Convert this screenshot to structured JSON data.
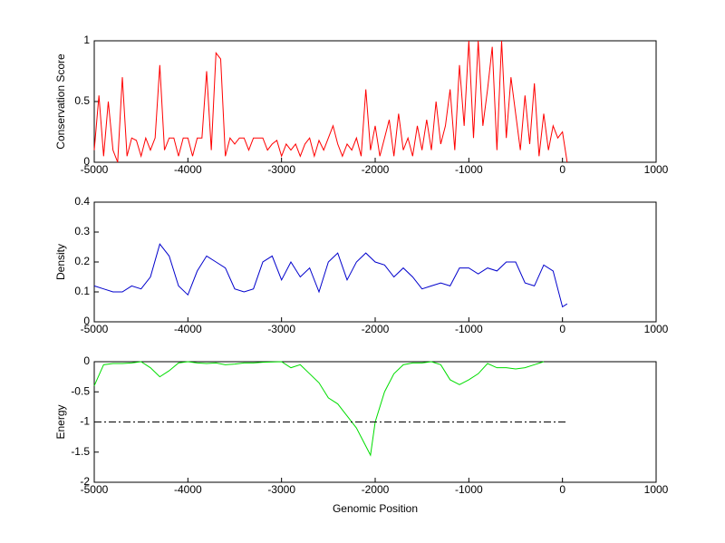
{
  "chart_data": [
    {
      "type": "line",
      "ylabel": "Conservation Score",
      "x": [
        -5000,
        -4950,
        -4900,
        -4850,
        -4800,
        -4750,
        -4700,
        -4650,
        -4600,
        -4550,
        -4500,
        -4450,
        -4400,
        -4350,
        -4300,
        -4250,
        -4200,
        -4150,
        -4100,
        -4050,
        -4000,
        -3950,
        -3900,
        -3850,
        -3800,
        -3750,
        -3700,
        -3650,
        -3600,
        -3550,
        -3500,
        -3450,
        -3400,
        -3350,
        -3300,
        -3250,
        -3200,
        -3150,
        -3100,
        -3050,
        -3000,
        -2950,
        -2900,
        -2850,
        -2800,
        -2750,
        -2700,
        -2650,
        -2600,
        -2550,
        -2500,
        -2450,
        -2400,
        -2350,
        -2300,
        -2250,
        -2200,
        -2150,
        -2100,
        -2050,
        -2000,
        -1950,
        -1900,
        -1850,
        -1800,
        -1750,
        -1700,
        -1650,
        -1600,
        -1550,
        -1500,
        -1450,
        -1400,
        -1350,
        -1300,
        -1250,
        -1200,
        -1150,
        -1100,
        -1050,
        -1000,
        -950,
        -900,
        -850,
        -800,
        -750,
        -700,
        -650,
        -600,
        -550,
        -500,
        -450,
        -400,
        -350,
        -300,
        -250,
        -200,
        -150,
        -100,
        -50,
        0,
        50
      ],
      "series": [
        {
          "color": "#ff0000",
          "values": [
            0.1,
            0.55,
            0.05,
            0.5,
            0.1,
            0,
            0.7,
            0.05,
            0.2,
            0.18,
            0.05,
            0.2,
            0.1,
            0.2,
            0.8,
            0.1,
            0.2,
            0.2,
            0.05,
            0.2,
            0.2,
            0.05,
            0.2,
            0.2,
            0.75,
            0.1,
            0.9,
            0.85,
            0.05,
            0.2,
            0.15,
            0.2,
            0.2,
            0.1,
            0.2,
            0.2,
            0.2,
            0.1,
            0.15,
            0.18,
            0.05,
            0.15,
            0.1,
            0.15,
            0.05,
            0.15,
            0.2,
            0.05,
            0.18,
            0.1,
            0.2,
            0.3,
            0.15,
            0.05,
            0.15,
            0.1,
            0.2,
            0.05,
            0.6,
            0.1,
            0.3,
            0.05,
            0.2,
            0.35,
            0.05,
            0.4,
            0.1,
            0.2,
            0.05,
            0.3,
            0.1,
            0.35,
            0.1,
            0.5,
            0.15,
            0.3,
            0.6,
            0.1,
            0.8,
            0.3,
            1,
            0.2,
            1,
            0.3,
            0.6,
            0.95,
            0.1,
            1,
            0.2,
            0.7,
            0.4,
            0.1,
            0.55,
            0.15,
            0.65,
            0.05,
            0.4,
            0.1,
            0.3,
            0.2,
            0.25,
            0
          ]
        }
      ],
      "xlim": [
        -5000,
        1000
      ],
      "xticks": [
        -5000,
        -4000,
        -3000,
        -2000,
        -1000,
        0,
        1000
      ],
      "ylim": [
        0,
        1
      ],
      "yticks": [
        0,
        0.5,
        1
      ]
    },
    {
      "type": "line",
      "ylabel": "Density",
      "x": [
        -5000,
        -4900,
        -4800,
        -4700,
        -4600,
        -4500,
        -4400,
        -4300,
        -4200,
        -4100,
        -4000,
        -3900,
        -3800,
        -3700,
        -3600,
        -3500,
        -3400,
        -3300,
        -3200,
        -3100,
        -3000,
        -2900,
        -2800,
        -2700,
        -2600,
        -2500,
        -2400,
        -2300,
        -2200,
        -2100,
        -2000,
        -1900,
        -1800,
        -1700,
        -1600,
        -1500,
        -1400,
        -1300,
        -1200,
        -1100,
        -1000,
        -900,
        -800,
        -700,
        -600,
        -500,
        -400,
        -300,
        -200,
        -100,
        0,
        50
      ],
      "series": [
        {
          "color": "#0000cc",
          "values": [
            0.12,
            0.11,
            0.1,
            0.1,
            0.12,
            0.11,
            0.15,
            0.26,
            0.22,
            0.12,
            0.09,
            0.17,
            0.22,
            0.2,
            0.18,
            0.11,
            0.1,
            0.11,
            0.2,
            0.22,
            0.14,
            0.2,
            0.15,
            0.18,
            0.1,
            0.2,
            0.23,
            0.14,
            0.2,
            0.23,
            0.2,
            0.19,
            0.15,
            0.18,
            0.15,
            0.11,
            0.12,
            0.13,
            0.12,
            0.18,
            0.18,
            0.16,
            0.18,
            0.17,
            0.2,
            0.2,
            0.13,
            0.12,
            0.19,
            0.17,
            0.05,
            0.06
          ]
        }
      ],
      "xlim": [
        -5000,
        1000
      ],
      "xticks": [
        -5000,
        -4000,
        -3000,
        -2000,
        -1000,
        0,
        1000
      ],
      "ylim": [
        0,
        0.4
      ],
      "yticks": [
        0,
        0.1,
        0.2,
        0.3,
        0.4
      ]
    },
    {
      "type": "line",
      "ylabel": "Energy",
      "xlabel": "Genomic Position",
      "x": [
        -5000,
        -4900,
        -4800,
        -4700,
        -4600,
        -4500,
        -4400,
        -4300,
        -4200,
        -4100,
        -4000,
        -3900,
        -3800,
        -3700,
        -3600,
        -3500,
        -3400,
        -3300,
        -3200,
        -3000,
        -2900,
        -2800,
        -2700,
        -2600,
        -2500,
        -2400,
        -2300,
        -2200,
        -2100,
        -2050,
        -2000,
        -1900,
        -1800,
        -1700,
        -1600,
        -1500,
        -1400,
        -1300,
        -1200,
        -1100,
        -1000,
        -900,
        -800,
        -700,
        -600,
        -500,
        -400,
        -300,
        -200
      ],
      "series": [
        {
          "color": "#00dd00",
          "values": [
            -0.4,
            -0.05,
            -0.03,
            -0.03,
            -0.02,
            0,
            -0.1,
            -0.25,
            -0.15,
            -0.02,
            0,
            -0.02,
            -0.03,
            -0.02,
            -0.05,
            -0.04,
            -0.02,
            -0.02,
            -0.01,
            0,
            -0.1,
            -0.05,
            -0.2,
            -0.35,
            -0.6,
            -0.7,
            -0.9,
            -1.1,
            -1.4,
            -1.55,
            -1,
            -0.5,
            -0.2,
            -0.05,
            -0.02,
            -0.02,
            0,
            -0.05,
            -0.3,
            -0.38,
            -0.3,
            -0.2,
            -0.03,
            -0.1,
            -0.1,
            -0.12,
            -0.1,
            -0.05,
            0
          ]
        }
      ],
      "reference_line": {
        "y": -1,
        "x": [
          -5000,
          50
        ]
      },
      "xlim": [
        -5000,
        1000
      ],
      "xticks": [
        -5000,
        -4000,
        -3000,
        -2000,
        -1000,
        0,
        1000
      ],
      "ylim": [
        -2,
        0
      ],
      "yticks": [
        -2,
        -1.5,
        -1,
        -0.5,
        0
      ]
    }
  ]
}
